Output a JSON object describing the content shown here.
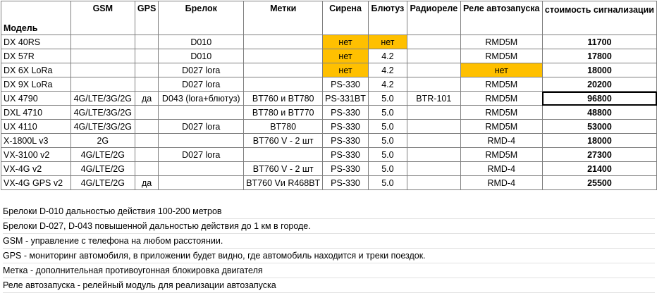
{
  "table": {
    "headers": [
      "Модель",
      "GSM",
      "GPS",
      "Брелок",
      "Метки",
      "Сирена",
      "Блютуз",
      "Радиореле",
      "Реле автозапуска",
      "стоимость сигнализации"
    ],
    "rows": [
      {
        "model": "DX 40RS",
        "gsm": "",
        "gps": "",
        "fob": "D010",
        "tags": "",
        "siren": "нет",
        "bt": "нет",
        "radio": "",
        "relay": "RMD5M",
        "price": "11700"
      },
      {
        "model": "DX 57R",
        "gsm": "",
        "gps": "",
        "fob": "D010",
        "tags": "",
        "siren": "нет",
        "bt": "4.2",
        "radio": "",
        "relay": "RMD5M",
        "price": "17800"
      },
      {
        "model": "DX 6X LoRa",
        "gsm": "",
        "gps": "",
        "fob": "D027 lora",
        "tags": "",
        "siren": "нет",
        "bt": "4.2",
        "radio": "",
        "relay": "нет",
        "price": "18000"
      },
      {
        "model": "DX 9X LoRa",
        "gsm": "",
        "gps": "",
        "fob": "D027 lora",
        "tags": "",
        "siren": "PS-330",
        "bt": "4.2",
        "radio": "",
        "relay": "RMD5M",
        "price": "20200"
      },
      {
        "model": "UX 4790",
        "gsm": "4G/LTE/3G/2G",
        "gps": "да",
        "fob": "D043 (lora+блютуз)",
        "tags": "BT760 и BT780",
        "siren": "PS-331BT",
        "bt": "5.0",
        "radio": "BTR-101",
        "relay": "RMD5M",
        "price": "96800"
      },
      {
        "model": "DXL 4710",
        "gsm": "4G/LTE/3G/2G",
        "gps": "",
        "fob": "",
        "tags": "BT780 и BT770",
        "siren": "PS-330",
        "bt": "5.0",
        "radio": "",
        "relay": "RMD5M",
        "price": "48800"
      },
      {
        "model": "UX 4110",
        "gsm": "4G/LTE/3G/2G",
        "gps": "",
        "fob": "D027 lora",
        "tags": "BT780",
        "siren": "PS-330",
        "bt": "5.0",
        "radio": "",
        "relay": "RMD5M",
        "price": "53000"
      },
      {
        "model": "X-1800L v3",
        "gsm": "2G",
        "gps": "",
        "fob": "",
        "tags": "BT760 V - 2 шт",
        "siren": "PS-330",
        "bt": "5.0",
        "radio": "",
        "relay": "RMD-4",
        "price": "18000"
      },
      {
        "model": "VX-3100 v2",
        "gsm": "4G/LTE/2G",
        "gps": "",
        "fob": "D027 lora",
        "tags": "",
        "siren": "PS-330",
        "bt": "5.0",
        "radio": "",
        "relay": "RMD5M",
        "price": "27300"
      },
      {
        "model": "VX-4G v2",
        "gsm": "4G/LTE/2G",
        "gps": "",
        "fob": "",
        "tags": "BT760 V - 2 шт",
        "siren": "PS-330",
        "bt": "5.0",
        "radio": "",
        "relay": "RMD-4",
        "price": "21400"
      },
      {
        "model": "VX-4G GPS v2",
        "gsm": "4G/LTE/2G",
        "gps": "да",
        "fob": "",
        "tags": "BT760 Vи R468BT",
        "siren": "PS-330",
        "bt": "5.0",
        "radio": "",
        "relay": "RMD-4",
        "price": "25500"
      }
    ],
    "highlight_color": "#ffc000"
  },
  "notes": [
    "Брелоки D-010 дальностью действия 100-200 метров",
    "Брелоки D-027, D-043 повышенной дальностью действия до 1 км в городе.",
    "GSM - управление с телефона на любом расстоянии.",
    "GPS - мониторинг автомобиля, в приложении будет видно, где автомобиль находится и треки поездок.",
    "Метка - дополнительная противоугонная блокировка двигателя",
    "Реле автозапуска - релейный модуль для реализации автозапуска"
  ]
}
